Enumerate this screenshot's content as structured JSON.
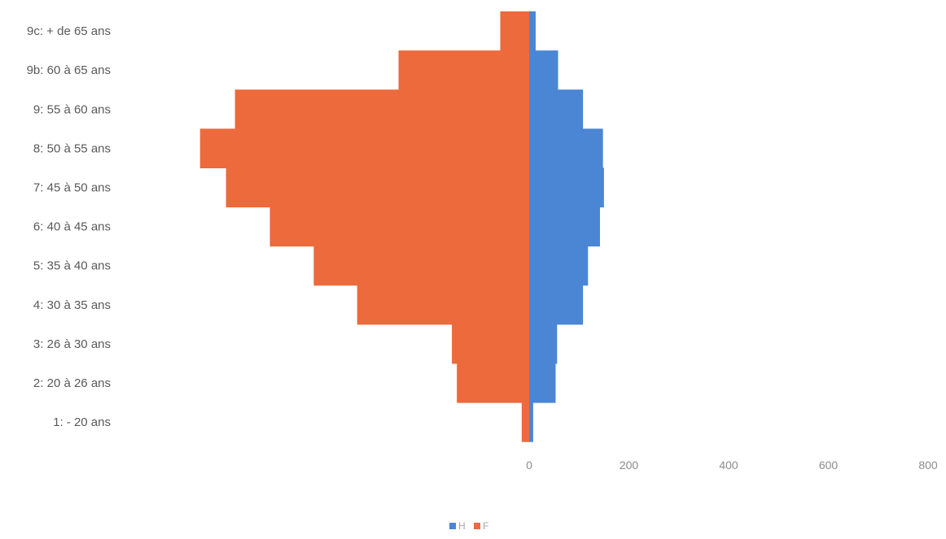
{
  "chart_data": {
    "type": "bar",
    "orientation": "horizontal",
    "layout": "population-pyramid",
    "categories": [
      "9c: + de 65 ans",
      "9b: 60 à 65 ans",
      "9: 55 à 60 ans",
      "8: 50 à 55 ans",
      "7: 45 à 50 ans",
      "6: 40 à 45 ans",
      "5: 35 à 40 ans",
      "4: 30 à 35 ans",
      "3: 26 à 30 ans",
      "2: 20 à 26 ans",
      "1:  - 20 ans"
    ],
    "series": [
      {
        "name": "H",
        "color": "#4a86d4",
        "side": "right",
        "values": [
          13,
          58,
          108,
          148,
          150,
          142,
          118,
          108,
          56,
          53,
          8
        ]
      },
      {
        "name": "F",
        "color": "#ec6a3c",
        "side": "left",
        "values": [
          58,
          262,
          590,
          660,
          608,
          520,
          432,
          345,
          155,
          145,
          15
        ]
      }
    ],
    "x_ticks": [
      0,
      200,
      400,
      600,
      800
    ],
    "xlim": [
      -660,
      800
    ],
    "grid": false,
    "legend_position": "bottom-center"
  }
}
